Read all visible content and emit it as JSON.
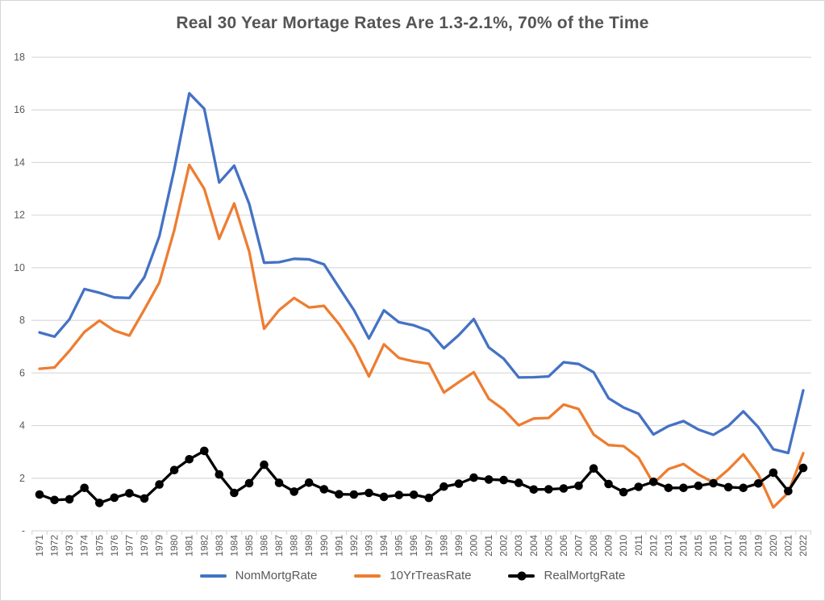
{
  "title": "Real 30 Year Mortage Rates Are 1.3-2.1%, 70% of the Time",
  "colors": {
    "gridline": "#d9d9d9",
    "axis_line": "#d9d9d9",
    "axis_text": "#595959",
    "title_text": "#555555",
    "background": "#ffffff",
    "series_blue": "#4472C4",
    "series_orange": "#ED7D31",
    "series_black": "#000000"
  },
  "chart_data": {
    "type": "line",
    "title": "Real 30 Year Mortage Rates Are 1.3-2.1%, 70% of the Time",
    "xlabel": "",
    "ylabel": "",
    "ylim": [
      0,
      18
    ],
    "y_tick_labels": [
      "-",
      "2",
      "4",
      "6",
      "8",
      "10",
      "12",
      "14",
      "16",
      "18"
    ],
    "grid": "horizontal",
    "legend_position": "bottom",
    "x": [
      1971,
      1972,
      1973,
      1974,
      1975,
      1976,
      1977,
      1978,
      1979,
      1980,
      1981,
      1982,
      1983,
      1984,
      1985,
      1986,
      1987,
      1988,
      1989,
      1990,
      1991,
      1992,
      1993,
      1994,
      1995,
      1996,
      1997,
      1998,
      1999,
      2000,
      2001,
      2002,
      2003,
      2004,
      2005,
      2006,
      2007,
      2008,
      2009,
      2010,
      2011,
      2012,
      2013,
      2014,
      2015,
      2016,
      2017,
      2018,
      2019,
      2020,
      2021,
      2022
    ],
    "series": [
      {
        "name": "NomMortgRate",
        "color": "#4472C4",
        "marker": "none",
        "values": [
          7.54,
          7.38,
          8.04,
          9.19,
          9.05,
          8.87,
          8.85,
          9.64,
          11.2,
          13.74,
          16.63,
          16.04,
          13.24,
          13.88,
          12.43,
          10.19,
          10.21,
          10.34,
          10.32,
          10.13,
          9.25,
          8.39,
          7.31,
          8.38,
          7.93,
          7.81,
          7.6,
          6.94,
          7.44,
          8.05,
          6.97,
          6.54,
          5.83,
          5.84,
          5.87,
          6.41,
          6.34,
          6.03,
          5.04,
          4.69,
          4.45,
          3.66,
          3.98,
          4.17,
          3.85,
          3.65,
          3.99,
          4.54,
          3.94,
          3.1,
          2.96,
          5.34
        ]
      },
      {
        "name": "10YrTreasRate",
        "color": "#ED7D31",
        "marker": "none",
        "values": [
          6.16,
          6.21,
          6.84,
          7.56,
          7.99,
          7.61,
          7.42,
          8.41,
          9.44,
          11.43,
          13.91,
          13.0,
          11.1,
          12.44,
          10.62,
          7.68,
          8.39,
          8.85,
          8.49,
          8.55,
          7.86,
          7.01,
          5.87,
          7.09,
          6.57,
          6.44,
          6.35,
          5.26,
          5.65,
          6.03,
          5.02,
          4.61,
          4.01,
          4.27,
          4.29,
          4.8,
          4.63,
          3.66,
          3.26,
          3.22,
          2.78,
          1.8,
          2.35,
          2.54,
          2.14,
          1.84,
          2.33,
          2.91,
          2.14,
          0.89,
          1.45,
          2.95
        ]
      },
      {
        "name": "RealMortgRate",
        "color": "#000000",
        "marker": "circle",
        "values": [
          1.38,
          1.17,
          1.2,
          1.63,
          1.06,
          1.26,
          1.43,
          1.23,
          1.76,
          2.31,
          2.72,
          3.04,
          2.14,
          1.44,
          1.81,
          2.51,
          1.82,
          1.49,
          1.83,
          1.58,
          1.39,
          1.38,
          1.44,
          1.29,
          1.36,
          1.37,
          1.25,
          1.68,
          1.79,
          2.02,
          1.95,
          1.93,
          1.82,
          1.57,
          1.58,
          1.61,
          1.71,
          2.37,
          1.78,
          1.47,
          1.67,
          1.86,
          1.63,
          1.63,
          1.71,
          1.81,
          1.66,
          1.63,
          1.8,
          2.21,
          1.51,
          2.39
        ]
      }
    ]
  },
  "legend": {
    "items": [
      {
        "label": "NomMortgRate"
      },
      {
        "label": "10YrTreasRate"
      },
      {
        "label": "RealMortgRate"
      }
    ]
  }
}
